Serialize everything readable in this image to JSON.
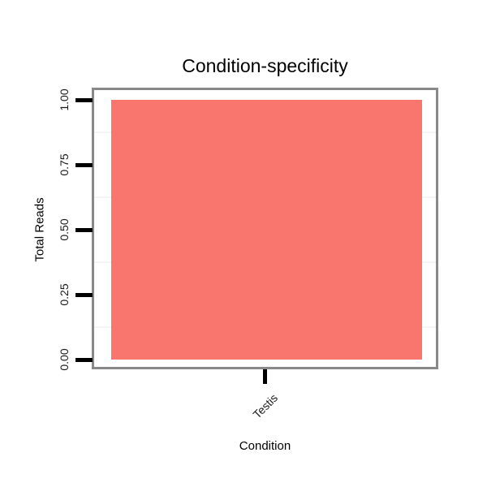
{
  "figure": {
    "background": "#ffffff"
  },
  "chart_data": {
    "type": "bar",
    "title": "Condition-specificity",
    "xlabel": "Condition",
    "ylabel": "Total Reads",
    "categories": [
      "Testis"
    ],
    "values": [
      1.0
    ],
    "ylim": [
      0,
      1
    ],
    "yticks": [
      0,
      0.25,
      0.5,
      0.75,
      1
    ],
    "ytick_labels": [
      "0.00",
      "0.25",
      "0.50",
      "0.75",
      "1.00"
    ],
    "bar_color": "#F8766D",
    "panel_border_color": "#898989",
    "minor_grid_color": "#f4f4f4",
    "tick_mark_color": "#000000",
    "text_color": "#000000",
    "grid": "minor horizontal gridlines only",
    "legend": "none",
    "x_tick_label_angle_deg": 45,
    "y_tick_label_angle_deg": 90
  }
}
